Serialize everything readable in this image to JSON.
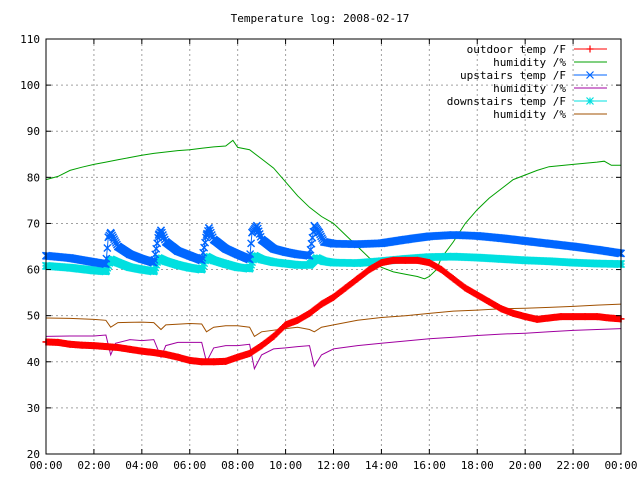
{
  "chart_data": {
    "type": "line",
    "title": "Temperature log: 2008-02-17",
    "xlabel": "",
    "ylabel": "",
    "grid": true,
    "legend_position": "top-right",
    "x_unit": "hours",
    "xlim": [
      0,
      24
    ],
    "ylim": [
      20,
      110
    ],
    "x_ticks": [
      "00:00",
      "02:00",
      "04:00",
      "06:00",
      "08:00",
      "10:00",
      "12:00",
      "14:00",
      "16:00",
      "18:00",
      "20:00",
      "22:00",
      "00:00"
    ],
    "y_ticks": [
      "20",
      "30",
      "40",
      "50",
      "60",
      "70",
      "80",
      "90",
      "100",
      "110"
    ],
    "series": [
      {
        "name": "outdoor temp /F",
        "color": "#ff0000",
        "marker": "plus",
        "points": [
          [
            0,
            44.3
          ],
          [
            0.5,
            44.2
          ],
          [
            1,
            43.8
          ],
          [
            1.5,
            43.6
          ],
          [
            2,
            43.5
          ],
          [
            2.5,
            43.3
          ],
          [
            3,
            43.1
          ],
          [
            3.5,
            42.7
          ],
          [
            4,
            42.3
          ],
          [
            4.5,
            42
          ],
          [
            5,
            41.6
          ],
          [
            5.5,
            41
          ],
          [
            6,
            40.3
          ],
          [
            6.5,
            40
          ],
          [
            7,
            40
          ],
          [
            7.5,
            40.1
          ],
          [
            8,
            41
          ],
          [
            8.5,
            41.8
          ],
          [
            9,
            43.5
          ],
          [
            9.5,
            45.5
          ],
          [
            10,
            48
          ],
          [
            10.5,
            49
          ],
          [
            11,
            50.5
          ],
          [
            11.5,
            52.5
          ],
          [
            12,
            54
          ],
          [
            12.5,
            56
          ],
          [
            13,
            58
          ],
          [
            13.5,
            60
          ],
          [
            14,
            61.5
          ],
          [
            14.5,
            62
          ],
          [
            15,
            62
          ],
          [
            15.5,
            62
          ],
          [
            16,
            61.5
          ],
          [
            16.5,
            60
          ],
          [
            17,
            58
          ],
          [
            17.5,
            56
          ],
          [
            18,
            54.5
          ],
          [
            18.5,
            53
          ],
          [
            19,
            51.5
          ],
          [
            19.5,
            50.5
          ],
          [
            20,
            49.8
          ],
          [
            20.5,
            49.2
          ],
          [
            21,
            49.5
          ],
          [
            21.5,
            49.8
          ],
          [
            22,
            49.8
          ],
          [
            22.5,
            49.8
          ],
          [
            23,
            49.8
          ],
          [
            23.5,
            49.5
          ],
          [
            24,
            49.3
          ]
        ]
      },
      {
        "name": "humidity /%",
        "color": "#00a000",
        "marker": "none",
        "points": [
          [
            0,
            79.5
          ],
          [
            0.5,
            80.2
          ],
          [
            1,
            81.5
          ],
          [
            1.5,
            82.2
          ],
          [
            2,
            82.8
          ],
          [
            2.5,
            83.3
          ],
          [
            3,
            83.8
          ],
          [
            3.5,
            84.3
          ],
          [
            4,
            84.8
          ],
          [
            4.5,
            85.2
          ],
          [
            5,
            85.5
          ],
          [
            5.5,
            85.8
          ],
          [
            6,
            86
          ],
          [
            6.5,
            86.3
          ],
          [
            7,
            86.6
          ],
          [
            7.5,
            86.8
          ],
          [
            7.8,
            88
          ],
          [
            8,
            86.5
          ],
          [
            8.5,
            86
          ],
          [
            9,
            84
          ],
          [
            9.5,
            82
          ],
          [
            10,
            79
          ],
          [
            10.5,
            76
          ],
          [
            11,
            73.5
          ],
          [
            11.5,
            71.5
          ],
          [
            12,
            70
          ],
          [
            12.5,
            67.5
          ],
          [
            13,
            65
          ],
          [
            13.5,
            62.5
          ],
          [
            14,
            60.5
          ],
          [
            14.5,
            59.5
          ],
          [
            15,
            59
          ],
          [
            15.5,
            58.5
          ],
          [
            15.8,
            58
          ],
          [
            16,
            58.5
          ],
          [
            16.3,
            60
          ],
          [
            16.5,
            62.5
          ],
          [
            17,
            66
          ],
          [
            17.5,
            70
          ],
          [
            18,
            73
          ],
          [
            18.5,
            75.5
          ],
          [
            19,
            77.5
          ],
          [
            19.5,
            79.5
          ],
          [
            20,
            80.5
          ],
          [
            20.5,
            81.5
          ],
          [
            21,
            82.3
          ],
          [
            22,
            82.8
          ],
          [
            23,
            83.3
          ],
          [
            23.3,
            83.5
          ],
          [
            23.6,
            82.6
          ],
          [
            24,
            82.6
          ]
        ]
      },
      {
        "name": "upstairs temp /F",
        "color": "#0066ff",
        "marker": "cross",
        "points": [
          [
            0,
            63
          ],
          [
            1,
            62.5
          ],
          [
            2,
            61.6
          ],
          [
            2.5,
            61.2
          ],
          [
            2.6,
            67
          ],
          [
            2.7,
            68
          ],
          [
            3,
            65
          ],
          [
            3.5,
            63.3
          ],
          [
            4,
            62.3
          ],
          [
            4.5,
            61.5
          ],
          [
            4.7,
            67.5
          ],
          [
            4.8,
            68.5
          ],
          [
            5,
            66
          ],
          [
            5.5,
            64
          ],
          [
            6,
            63
          ],
          [
            6.5,
            62
          ],
          [
            6.7,
            67.5
          ],
          [
            6.8,
            69
          ],
          [
            7,
            66.5
          ],
          [
            7.5,
            64.5
          ],
          [
            8,
            63.3
          ],
          [
            8.5,
            62.2
          ],
          [
            8.6,
            68
          ],
          [
            8.8,
            69.5
          ],
          [
            9,
            66.5
          ],
          [
            9.5,
            64.5
          ],
          [
            10,
            63.8
          ],
          [
            10.5,
            63.3
          ],
          [
            11,
            63
          ],
          [
            11.2,
            69.5
          ],
          [
            11.4,
            68
          ],
          [
            11.6,
            66
          ],
          [
            12,
            65.6
          ],
          [
            13,
            65.5
          ],
          [
            14,
            65.7
          ],
          [
            15,
            66.5
          ],
          [
            16,
            67.2
          ],
          [
            17,
            67.5
          ],
          [
            18,
            67.3
          ],
          [
            19,
            66.8
          ],
          [
            20,
            66.2
          ],
          [
            21,
            65.6
          ],
          [
            22,
            65
          ],
          [
            23,
            64.3
          ],
          [
            24,
            63.5
          ]
        ]
      },
      {
        "name": "humidity /%",
        "color": "#a000a0",
        "marker": "none",
        "points": [
          [
            0,
            45.5
          ],
          [
            1,
            45.6
          ],
          [
            2,
            45.6
          ],
          [
            2.5,
            45.8
          ],
          [
            2.7,
            41.5
          ],
          [
            2.9,
            44
          ],
          [
            3.5,
            44.8
          ],
          [
            4,
            44.6
          ],
          [
            4.5,
            44.8
          ],
          [
            4.8,
            41
          ],
          [
            5,
            43.5
          ],
          [
            5.5,
            44.2
          ],
          [
            6,
            44.2
          ],
          [
            6.5,
            44.2
          ],
          [
            6.7,
            40
          ],
          [
            7,
            43
          ],
          [
            7.5,
            43.5
          ],
          [
            8,
            43.5
          ],
          [
            8.5,
            43.8
          ],
          [
            8.7,
            38.5
          ],
          [
            9,
            41.5
          ],
          [
            9.5,
            42.8
          ],
          [
            10,
            43
          ],
          [
            10.5,
            43.3
          ],
          [
            11,
            43.5
          ],
          [
            11.2,
            39
          ],
          [
            11.5,
            41.5
          ],
          [
            12,
            42.8
          ],
          [
            13,
            43.5
          ],
          [
            14,
            44
          ],
          [
            15,
            44.5
          ],
          [
            16,
            45
          ],
          [
            17,
            45.3
          ],
          [
            18,
            45.7
          ],
          [
            19,
            46
          ],
          [
            20,
            46.2
          ],
          [
            21,
            46.5
          ],
          [
            22,
            46.8
          ],
          [
            23,
            47
          ],
          [
            24,
            47.2
          ]
        ]
      },
      {
        "name": "downstairs temp /F",
        "color": "#00e0e0",
        "marker": "star",
        "points": [
          [
            0,
            60.8
          ],
          [
            1,
            60.4
          ],
          [
            2,
            59.8
          ],
          [
            2.5,
            59.6
          ],
          [
            2.7,
            62.2
          ],
          [
            3,
            61.5
          ],
          [
            3.5,
            60.5
          ],
          [
            4,
            60
          ],
          [
            4.5,
            59.6
          ],
          [
            4.7,
            62.5
          ],
          [
            5,
            61.8
          ],
          [
            5.5,
            61
          ],
          [
            6,
            60.4
          ],
          [
            6.5,
            60
          ],
          [
            6.7,
            62.8
          ],
          [
            7,
            62
          ],
          [
            7.5,
            61.2
          ],
          [
            8,
            60.5
          ],
          [
            8.5,
            60.2
          ],
          [
            8.7,
            63
          ],
          [
            9,
            62.2
          ],
          [
            9.5,
            61.6
          ],
          [
            10,
            61.3
          ],
          [
            10.5,
            61
          ],
          [
            11,
            61
          ],
          [
            11.3,
            62.5
          ],
          [
            11.6,
            61.8
          ],
          [
            12,
            61.5
          ],
          [
            13,
            61.4
          ],
          [
            14,
            61.8
          ],
          [
            15,
            62.3
          ],
          [
            16,
            62.7
          ],
          [
            17,
            62.8
          ],
          [
            18,
            62.6
          ],
          [
            19,
            62.3
          ],
          [
            20,
            62
          ],
          [
            21,
            61.8
          ],
          [
            22,
            61.5
          ],
          [
            23,
            61.3
          ],
          [
            24,
            61.2
          ]
        ]
      },
      {
        "name": "humidity /%",
        "color": "#a05000",
        "marker": "none",
        "points": [
          [
            0,
            49.5
          ],
          [
            1,
            49.4
          ],
          [
            2,
            49.2
          ],
          [
            2.5,
            49
          ],
          [
            2.7,
            47.5
          ],
          [
            3,
            48.5
          ],
          [
            4,
            48.6
          ],
          [
            4.5,
            48.5
          ],
          [
            4.8,
            47
          ],
          [
            5,
            48
          ],
          [
            6,
            48.3
          ],
          [
            6.5,
            48.2
          ],
          [
            6.7,
            46.5
          ],
          [
            7,
            47.5
          ],
          [
            7.5,
            47.8
          ],
          [
            8,
            47.8
          ],
          [
            8.5,
            47.5
          ],
          [
            8.7,
            45.5
          ],
          [
            9,
            46.5
          ],
          [
            10,
            47.2
          ],
          [
            10.5,
            47.5
          ],
          [
            11,
            47
          ],
          [
            11.2,
            46.5
          ],
          [
            11.5,
            47.5
          ],
          [
            12,
            48
          ],
          [
            13,
            49
          ],
          [
            14,
            49.6
          ],
          [
            15,
            50
          ],
          [
            16,
            50.5
          ],
          [
            17,
            51
          ],
          [
            18,
            51.2
          ],
          [
            19,
            51.5
          ],
          [
            20,
            51.6
          ],
          [
            21,
            51.8
          ],
          [
            22,
            52
          ],
          [
            23,
            52.3
          ],
          [
            24,
            52.5
          ]
        ]
      }
    ]
  }
}
